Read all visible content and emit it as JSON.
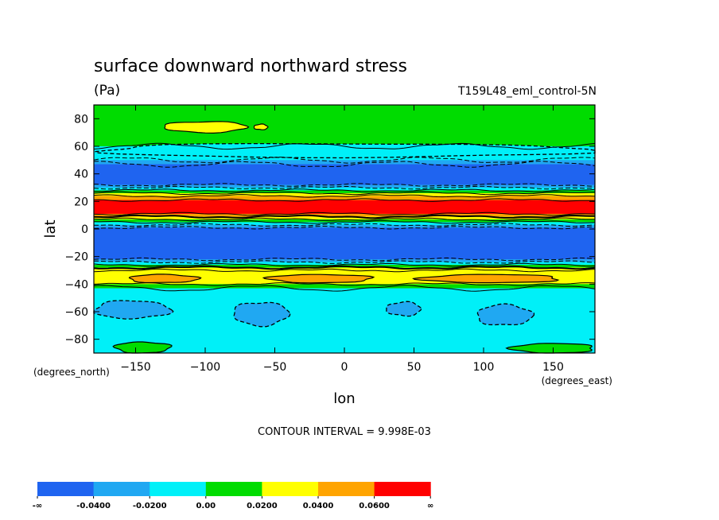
{
  "chart_data": {
    "type": "heatmap",
    "title": "surface downward northward stress",
    "units": "(Pa)",
    "run_label": "T159L48_eml_control-5N",
    "xlabel": "lon",
    "ylabel": "lat",
    "x_units": "(degrees_east)",
    "y_units": "(degrees_north)",
    "xlim": [
      -180,
      180
    ],
    "ylim": [
      -90,
      90
    ],
    "x_ticks": [
      -150,
      -100,
      -50,
      0,
      50,
      100,
      150
    ],
    "y_ticks": [
      80,
      60,
      40,
      20,
      0,
      -20,
      -40,
      -60,
      -80
    ],
    "contour_interval_label": "CONTOUR INTERVAL = 9.998E-03",
    "colorbar": {
      "colors": [
        "#1f64f0",
        "#20a8f2",
        "#00f0f8",
        "#00dc00",
        "#ffff00",
        "#ffa400",
        "#ff0000"
      ],
      "labels": [
        "-∞",
        "-0.0400",
        "-0.0200",
        "0.00",
        "0.0200",
        "0.0400",
        "0.0600",
        "∞"
      ]
    },
    "zonal_bands": [
      {
        "lat_from": 90,
        "lat_to": 60,
        "class": 3
      },
      {
        "lat_from": 60,
        "lat_to": 50,
        "class": 2
      },
      {
        "lat_from": 50,
        "lat_to": 47,
        "class": 1
      },
      {
        "lat_from": 47,
        "lat_to": 32,
        "class": 0
      },
      {
        "lat_from": 32,
        "lat_to": 30,
        "class": 1
      },
      {
        "lat_from": 30,
        "lat_to": 28,
        "class": 2
      },
      {
        "lat_from": 28,
        "lat_to": 26,
        "class": 3
      },
      {
        "lat_from": 26,
        "lat_to": 24,
        "class": 4
      },
      {
        "lat_from": 24,
        "lat_to": 21,
        "class": 5
      },
      {
        "lat_from": 21,
        "lat_to": 11,
        "class": 6
      },
      {
        "lat_from": 11,
        "lat_to": 9,
        "class": 5
      },
      {
        "lat_from": 9,
        "lat_to": 7,
        "class": 4
      },
      {
        "lat_from": 7,
        "lat_to": 5,
        "class": 3
      },
      {
        "lat_from": 5,
        "lat_to": 3,
        "class": 2
      },
      {
        "lat_from": 3,
        "lat_to": 1,
        "class": 1
      },
      {
        "lat_from": 1,
        "lat_to": -22,
        "class": 0
      },
      {
        "lat_from": -22,
        "lat_to": -24,
        "class": 1
      },
      {
        "lat_from": -24,
        "lat_to": -26,
        "class": 2
      },
      {
        "lat_from": -26,
        "lat_to": -28,
        "class": 3
      },
      {
        "lat_from": -28,
        "lat_to": -30,
        "class": 4
      },
      {
        "lat_from": -30,
        "lat_to": -40,
        "class": 4
      },
      {
        "lat_from": -40,
        "lat_to": -43,
        "class": 3
      },
      {
        "lat_from": -43,
        "lat_to": -90,
        "class": 2
      }
    ],
    "regions": [
      {
        "class": 2,
        "lon": [
          -180,
          180
        ],
        "lat": [
          62,
          52
        ]
      },
      {
        "class": 4,
        "lon": [
          -130,
          -70
        ],
        "lat": [
          78,
          70
        ]
      },
      {
        "class": 4,
        "lon": [
          -65,
          -55
        ],
        "lat": [
          76,
          72
        ]
      },
      {
        "class": 5,
        "lon": [
          -155,
          -105
        ],
        "lat": [
          -33,
          -39
        ]
      },
      {
        "class": 5,
        "lon": [
          -55,
          20
        ],
        "lat": [
          -33,
          -39
        ]
      },
      {
        "class": 5,
        "lon": [
          55,
          155
        ],
        "lat": [
          -33,
          -39
        ]
      },
      {
        "class": 1,
        "lon": [
          -180,
          -125
        ],
        "lat": [
          -52,
          -65
        ]
      },
      {
        "class": 1,
        "lon": [
          -80,
          -40
        ],
        "lat": [
          -53,
          -70
        ]
      },
      {
        "class": 1,
        "lon": [
          30,
          55
        ],
        "lat": [
          -53,
          -63
        ]
      },
      {
        "class": 1,
        "lon": [
          95,
          135
        ],
        "lat": [
          -55,
          -70
        ]
      },
      {
        "class": 3,
        "lon": [
          -165,
          -125
        ],
        "lat": [
          -82,
          -90
        ]
      },
      {
        "class": 3,
        "lon": [
          120,
          180
        ],
        "lat": [
          -83,
          -90
        ]
      }
    ]
  }
}
